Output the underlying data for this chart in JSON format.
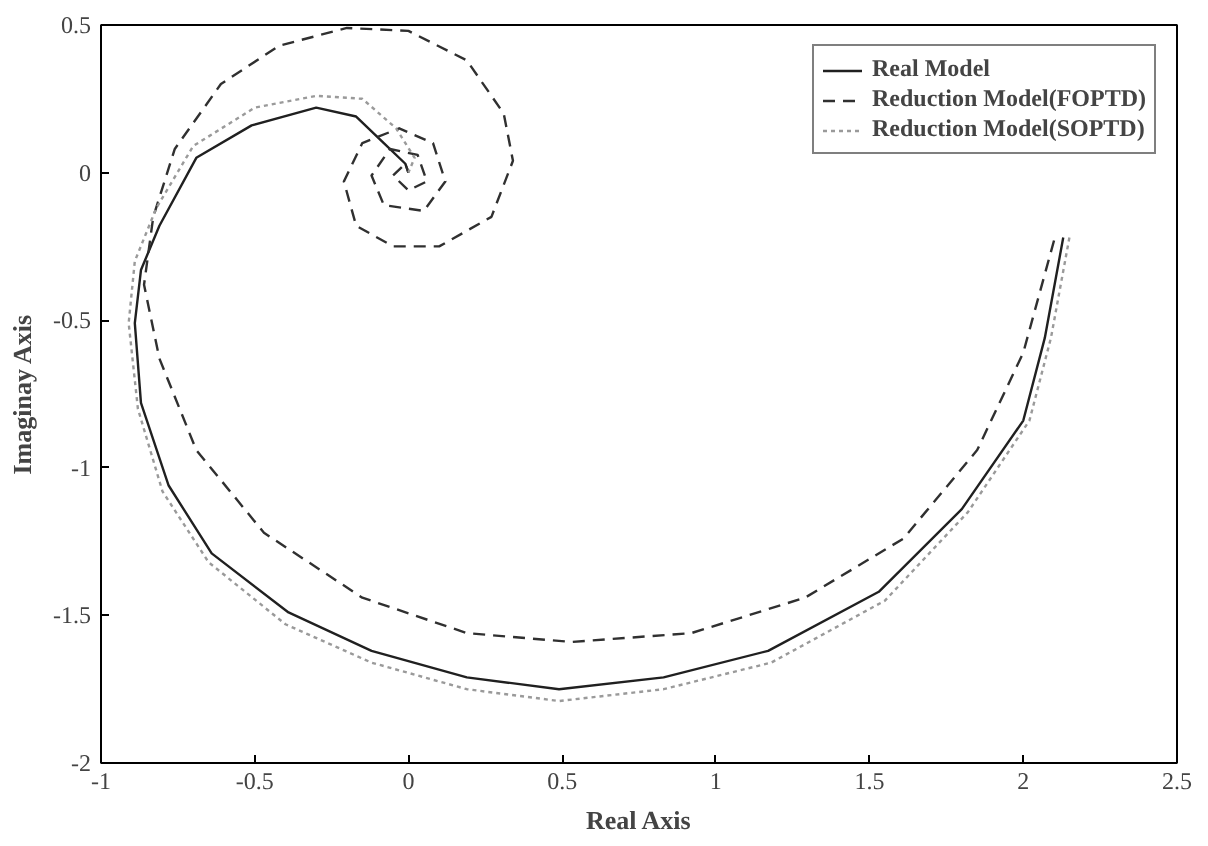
{
  "chart_data": {
    "type": "line",
    "xlabel": "Real Axis",
    "ylabel": "Imaginay Axis",
    "xlim": [
      -1,
      2.5
    ],
    "ylim": [
      -2,
      0.5
    ],
    "xticks": [
      -1,
      -0.5,
      0,
      0.5,
      1,
      1.5,
      2,
      2.5
    ],
    "yticks": [
      -2,
      -1.5,
      -1,
      -0.5,
      0,
      0.5
    ],
    "grid": false,
    "legend": "top right",
    "series": [
      {
        "name": "Real Model",
        "color": "#202020",
        "line_style": "solid",
        "x": [
          2.13,
          2.07,
          2.0,
          1.8,
          1.53,
          1.17,
          0.83,
          0.49,
          0.19,
          -0.12,
          -0.39,
          -0.64,
          -0.78,
          -0.87,
          -0.89,
          -0.87,
          -0.81,
          -0.69,
          -0.51,
          -0.3,
          -0.17,
          -0.08,
          -0.01,
          0
        ],
        "values": [
          -0.22,
          -0.56,
          -0.84,
          -1.14,
          -1.42,
          -1.62,
          -1.71,
          -1.75,
          -1.71,
          -1.62,
          -1.49,
          -1.29,
          -1.06,
          -0.78,
          -0.51,
          -0.33,
          -0.18,
          0.05,
          0.16,
          0.22,
          0.19,
          0.1,
          0.03,
          0
        ]
      },
      {
        "name": "Reduction Model(FOPTD)",
        "color": "#303030",
        "line_style": "dashed",
        "x": [
          2.1,
          2.0,
          1.85,
          1.61,
          1.29,
          0.92,
          0.53,
          0.19,
          -0.15,
          -0.47,
          -0.69,
          -0.81,
          -0.86,
          -0.83,
          -0.76,
          -0.61,
          -0.42,
          -0.2,
          0.0,
          0.19,
          0.31,
          0.34,
          0.27,
          0.1,
          -0.05,
          -0.17,
          -0.21,
          -0.15,
          -0.03,
          0.08,
          0.12,
          0.05,
          -0.08,
          -0.12,
          -0.06,
          0.03,
          0.06,
          0,
          -0.05,
          -0.01,
          0
        ],
        "values": [
          -0.23,
          -0.61,
          -0.94,
          -1.24,
          -1.44,
          -1.56,
          -1.59,
          -1.56,
          -1.44,
          -1.22,
          -0.94,
          -0.63,
          -0.38,
          -0.15,
          0.08,
          0.3,
          0.43,
          0.49,
          0.48,
          0.38,
          0.2,
          0.04,
          -0.15,
          -0.25,
          -0.25,
          -0.18,
          -0.03,
          0.1,
          0.15,
          0.1,
          -0.03,
          -0.13,
          -0.11,
          -0.01,
          0.08,
          0.06,
          -0.03,
          -0.06,
          -0.01,
          0.03,
          0
        ]
      },
      {
        "name": "Reduction Model(SOPTD)",
        "color": "#9a9a9a",
        "line_style": "dotted",
        "x": [
          2.15,
          2.09,
          2.02,
          1.82,
          1.55,
          1.18,
          0.83,
          0.49,
          0.19,
          -0.12,
          -0.4,
          -0.65,
          -0.8,
          -0.88,
          -0.91,
          -0.89,
          -0.82,
          -0.7,
          -0.5,
          -0.3,
          -0.15,
          -0.04,
          0.02,
          0
        ],
        "values": [
          -0.22,
          -0.56,
          -0.84,
          -1.15,
          -1.45,
          -1.66,
          -1.75,
          -1.79,
          -1.75,
          -1.66,
          -1.53,
          -1.32,
          -1.08,
          -0.8,
          -0.51,
          -0.3,
          -0.12,
          0.09,
          0.22,
          0.26,
          0.25,
          0.15,
          0.05,
          0
        ]
      }
    ]
  }
}
